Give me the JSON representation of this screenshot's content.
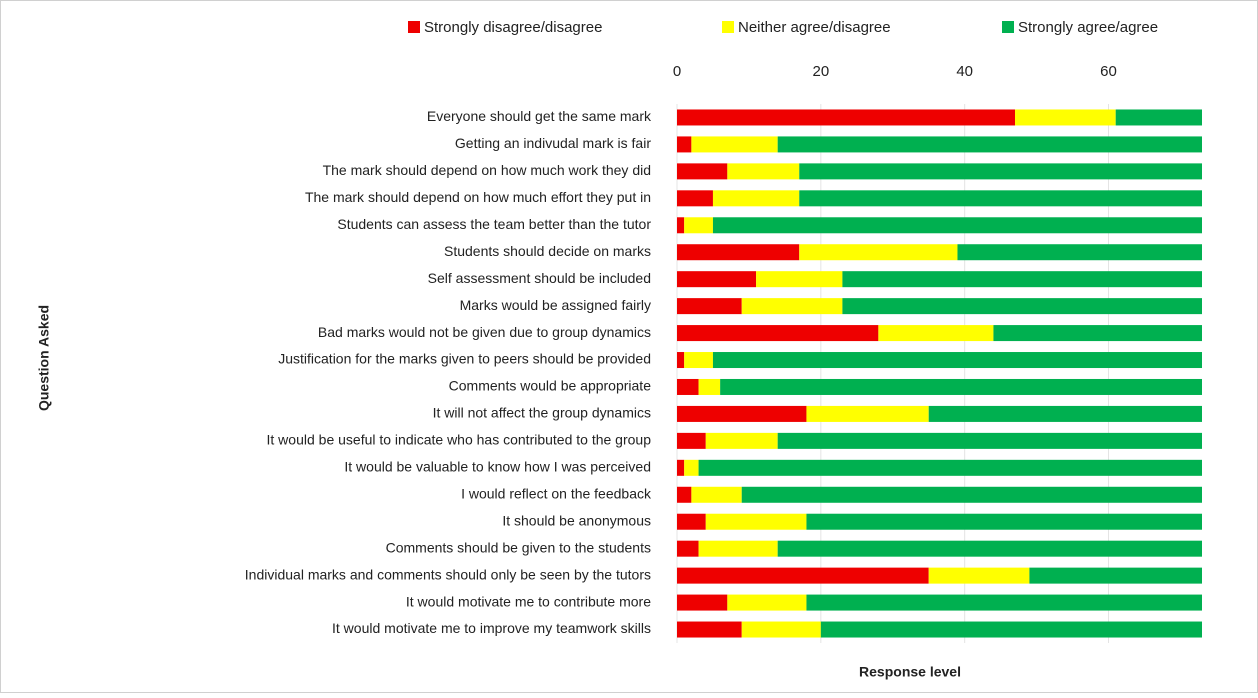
{
  "chart_data": {
    "type": "stacked-bar-horizontal",
    "x_label": "Response level",
    "y_label": "Question Asked",
    "categories": [
      "Everyone should get the same mark",
      "Getting an indivudal mark is fair",
      "The mark should depend on how much work they did",
      "The mark should depend on how much effort they put in",
      "Students can assess the team better than the tutor",
      "Students should decide on marks",
      "Self assessment should be included",
      "Marks would be assigned fairly",
      "Bad marks would not be given due to group dynamics",
      "Justification for the marks given to peers should be provided",
      "Comments would be appropriate",
      "It will not affect the group dynamics",
      "It would be useful to indicate who has contributed to the group",
      "It would be valuable to know how I was perceived",
      "I would reflect on the feedback",
      "It should be anonymous",
      "Comments should be given to the students",
      "Individual marks and comments should only be seen by the tutors",
      "It would motivate me to contribute more",
      "It would motivate me to improve my teamwork skills"
    ],
    "series": [
      {
        "name": "Strongly disagree/disagree",
        "color": "#ee0000",
        "values": [
          47,
          2,
          7,
          5,
          1,
          17,
          11,
          9,
          28,
          1,
          3,
          18,
          4,
          1,
          2,
          4,
          3,
          35,
          7,
          9
        ]
      },
      {
        "name": "Neither agree/disagree",
        "color": "#ffff00",
        "values": [
          14,
          12,
          10,
          12,
          4,
          22,
          12,
          14,
          16,
          4,
          3,
          17,
          10,
          2,
          7,
          14,
          11,
          14,
          11,
          11
        ]
      },
      {
        "name": "Strongly agree/agree",
        "color": "#00b050",
        "values": [
          12,
          59,
          56,
          56,
          68,
          34,
          50,
          50,
          29,
          68,
          67,
          38,
          59,
          70,
          64,
          55,
          59,
          24,
          55,
          53
        ]
      }
    ],
    "xlim": [
      0,
      73
    ],
    "xticks": [
      0,
      20,
      40,
      60
    ],
    "grid": true,
    "legend": "top"
  }
}
